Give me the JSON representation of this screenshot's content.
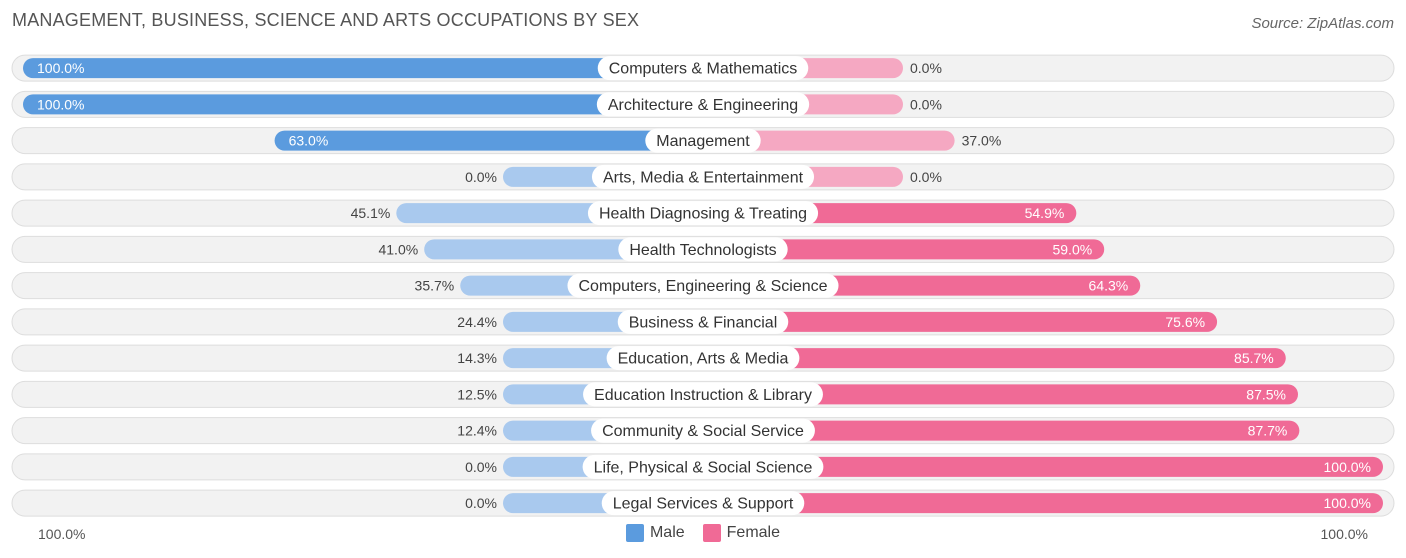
{
  "title": "MANAGEMENT, BUSINESS, SCIENCE AND ARTS OCCUPATIONS BY SEX",
  "source": "Source: ZipAtlas.com",
  "axis": {
    "left_label": "100.0%",
    "right_label": "100.0%"
  },
  "legend": {
    "male": "Male",
    "female": "Female"
  },
  "colors": {
    "male_strong": "#5b9bde",
    "male_light": "#a9c9ee",
    "female_strong": "#f06a96",
    "female_light": "#f5a8c2",
    "row_bg": "#f2f2f2",
    "row_border": "#dddddd"
  },
  "chart_data": {
    "type": "bar",
    "orientation": "diverging-horizontal",
    "title": "MANAGEMENT, BUSINESS, SCIENCE AND ARTS OCCUPATIONS BY SEX",
    "xlim": [
      -100,
      100
    ],
    "categories": [
      "Computers & Mathematics",
      "Architecture & Engineering",
      "Management",
      "Arts, Media & Entertainment",
      "Health Diagnosing & Treating",
      "Health Technologists",
      "Computers, Engineering & Science",
      "Business & Financial",
      "Education, Arts & Media",
      "Education Instruction & Library",
      "Community & Social Service",
      "Life, Physical & Social Science",
      "Legal Services & Support"
    ],
    "series": [
      {
        "name": "Male",
        "values": [
          100.0,
          100.0,
          63.0,
          0.0,
          45.1,
          41.0,
          35.7,
          24.4,
          14.3,
          12.5,
          12.4,
          0.0,
          0.0
        ],
        "labels": [
          "100.0%",
          "100.0%",
          "63.0%",
          "0.0%",
          "45.1%",
          "41.0%",
          "35.7%",
          "24.4%",
          "14.3%",
          "12.5%",
          "12.4%",
          "0.0%",
          "0.0%"
        ]
      },
      {
        "name": "Female",
        "values": [
          0.0,
          0.0,
          37.0,
          0.0,
          54.9,
          59.0,
          64.3,
          75.6,
          85.7,
          87.5,
          87.7,
          100.0,
          100.0
        ],
        "labels": [
          "0.0%",
          "0.0%",
          "37.0%",
          "0.0%",
          "54.9%",
          "59.0%",
          "64.3%",
          "75.6%",
          "85.7%",
          "87.5%",
          "87.7%",
          "100.0%",
          "100.0%"
        ]
      }
    ]
  }
}
